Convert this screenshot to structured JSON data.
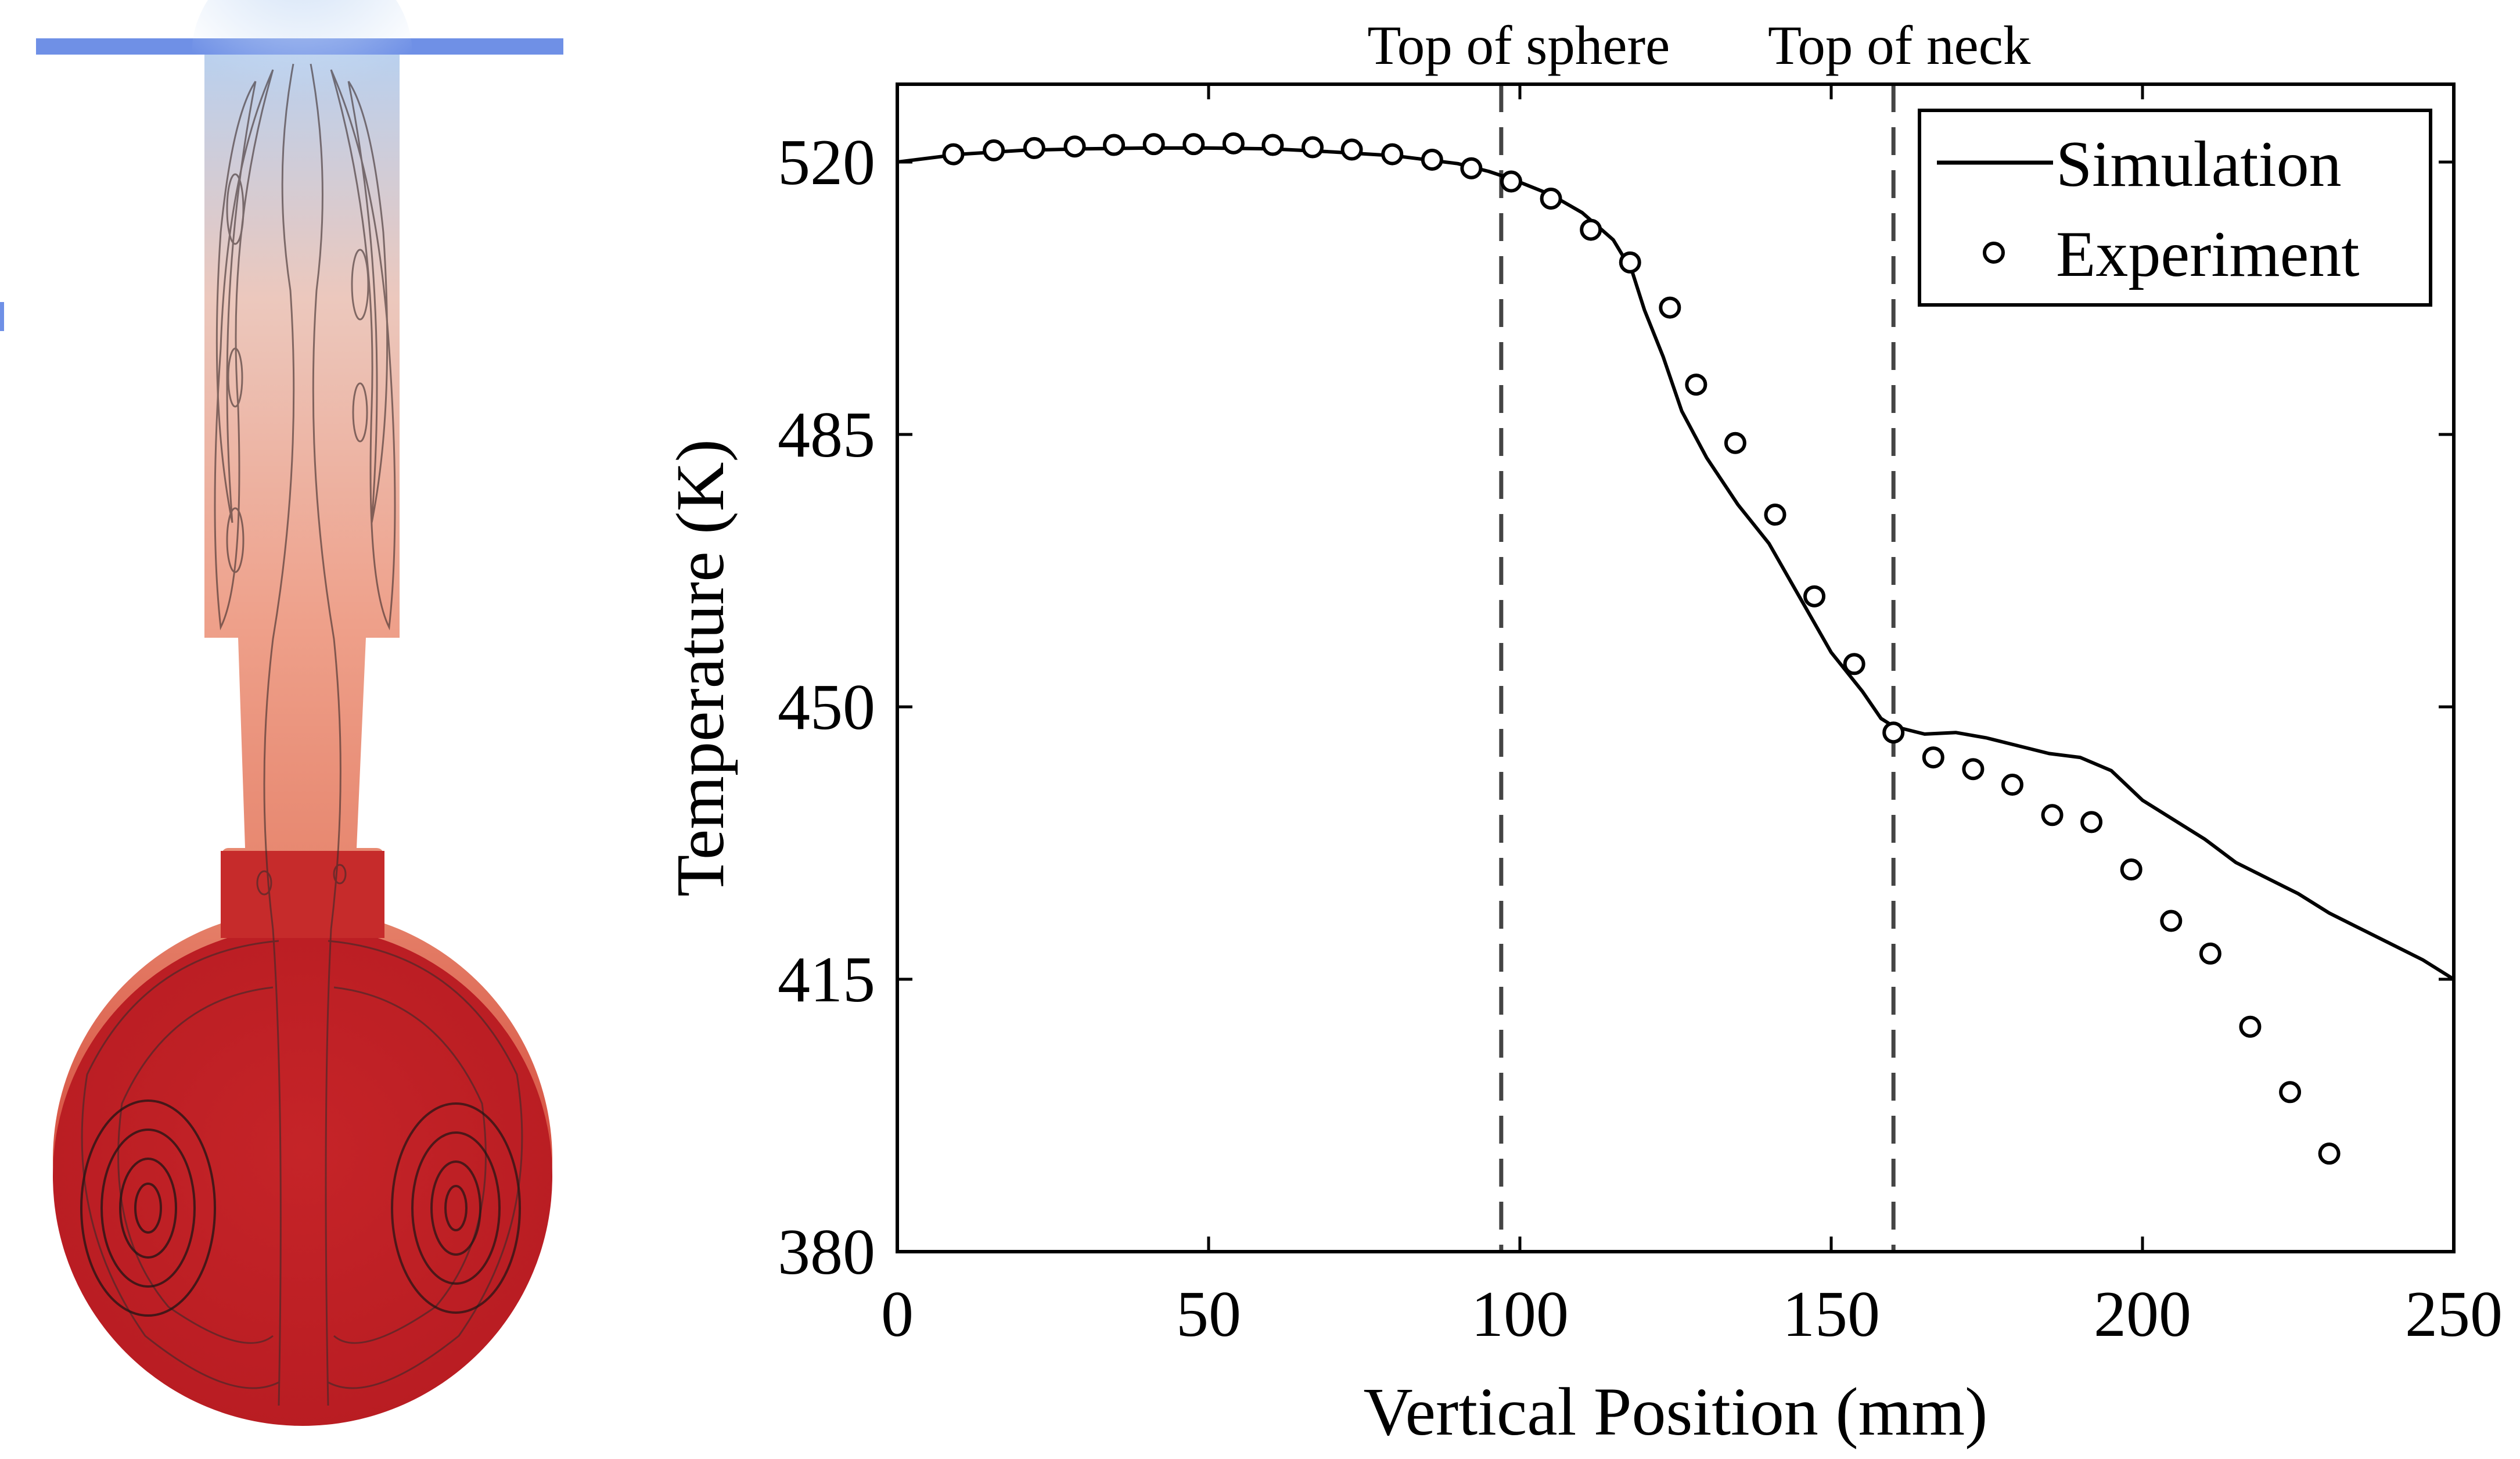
{
  "chart_data": {
    "type": "line",
    "title": "",
    "xlabel": "Vertical Position (mm)",
    "ylabel": "Temperature (K)",
    "xlim": [
      0,
      250
    ],
    "ylim": [
      380,
      530
    ],
    "xticks": [
      0,
      50,
      100,
      150,
      200,
      250
    ],
    "yticks": [
      380,
      415,
      450,
      485,
      520
    ],
    "grid": false,
    "legend": {
      "position": "top-right"
    },
    "series": [
      {
        "name": "Simulation",
        "style": "solid-line",
        "color": "#000000",
        "x": [
          0,
          10,
          20,
          30,
          40,
          50,
          60,
          70,
          80,
          90,
          95,
          98,
          100,
          105,
          110,
          115,
          118,
          120,
          123,
          126,
          130,
          135,
          140,
          145,
          150,
          155,
          158,
          160,
          165,
          170,
          175,
          180,
          185,
          190,
          195,
          200,
          205,
          210,
          215,
          220,
          225,
          230,
          235,
          240,
          245,
          250
        ],
        "y": [
          520,
          521,
          521.5,
          521.7,
          521.8,
          521.8,
          521.7,
          521.3,
          520.8,
          519.8,
          518.8,
          518.0,
          517.4,
          515.8,
          513.5,
          510.0,
          506.0,
          501.0,
          495.0,
          488.0,
          482.0,
          476.0,
          471.0,
          464.0,
          457.0,
          452.0,
          448.5,
          447.5,
          446.5,
          446.7,
          446.0,
          445.0,
          444.0,
          443.5,
          441.8,
          438.0,
          435.5,
          433.0,
          430.0,
          428.0,
          426.0,
          423.5,
          421.5,
          419.5,
          417.5,
          415.0
        ]
      },
      {
        "name": "Experiment",
        "style": "open-circle",
        "color": "#000000",
        "x": [
          9,
          15.5,
          22,
          28.5,
          34.8,
          41.2,
          47.6,
          54,
          60.3,
          66.7,
          73,
          79.5,
          85.9,
          92.2,
          98.6,
          105,
          111.4,
          117.7,
          124.1,
          128.3,
          134.6,
          141,
          147.3,
          153.7,
          160,
          166.4,
          172.8,
          179.1,
          185.5,
          191.8,
          198.2,
          204.6,
          210.9,
          217.3,
          223.7,
          230
        ],
        "y": [
          521,
          521.5,
          521.8,
          522,
          522.2,
          522.3,
          522.3,
          522.4,
          522.2,
          521.9,
          521.6,
          521,
          520.3,
          519.2,
          517.5,
          515.3,
          511.3,
          507.1,
          501.3,
          491.4,
          483.9,
          474.7,
          464.2,
          455.5,
          446.7,
          443.5,
          442,
          440,
          436.1,
          435.2,
          429.1,
          422.5,
          418.3,
          408.9,
          400.5,
          392.6
        ]
      }
    ],
    "annotations": [
      {
        "text": "Top of sphere",
        "x": 97,
        "style": "dashed-vertical-line"
      },
      {
        "text": "Top of neck",
        "x": 160,
        "style": "dashed-vertical-line"
      }
    ]
  },
  "left_figure": {
    "subject": "flask-streamline-temperature-contour",
    "colors": {
      "hot": "#bf1e24",
      "warm": "#e2735c",
      "cool": "#c8d8ee",
      "top_bar": "#6f90e6"
    }
  }
}
